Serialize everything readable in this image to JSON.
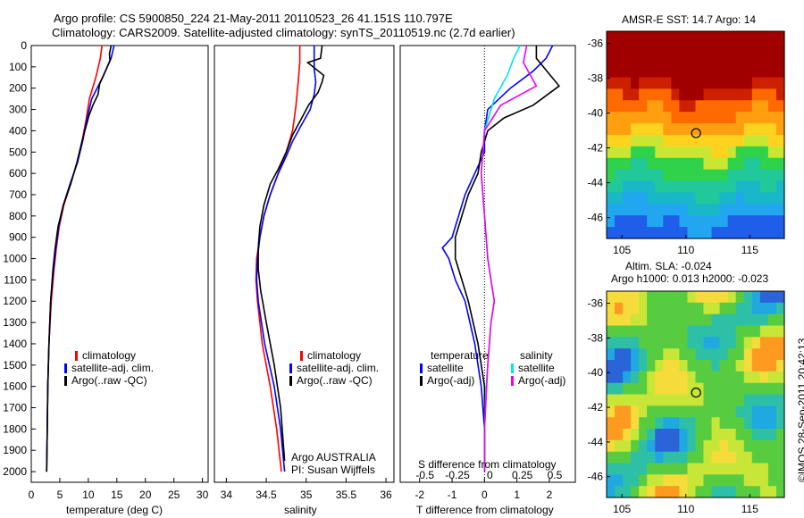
{
  "header": {
    "line1": "Argo profile: CS 5900850_224 21-May-2011 20110523_26 41.151S 110.797E",
    "line2": "Climatology: CARS2009. Satellite-adjusted climatology: synTS_20110519.nc (2.7d earlier)"
  },
  "credit": "©IMOS 28-Sep-2011 20:42:13",
  "colors": {
    "climatology": "#ff0000",
    "satellite": "#0000ff",
    "argo": "#000000",
    "sal_satellite": "#00e5ee",
    "sal_argo": "#ee00ee"
  },
  "chart_data": [
    {
      "id": "temperature",
      "type": "line",
      "xlabel": "temperature (deg C)",
      "xlim": [
        0,
        31
      ],
      "xticks": [
        0,
        5,
        10,
        15,
        20,
        25,
        30
      ],
      "ylim": [
        2050,
        0
      ],
      "yticks": [
        0,
        100,
        200,
        300,
        400,
        500,
        600,
        700,
        800,
        900,
        1000,
        1100,
        1200,
        1300,
        1400,
        1500,
        1600,
        1700,
        1800,
        1900,
        2000
      ],
      "legend": [
        "climatology",
        "satellite-adj. clim.",
        "Argo(..raw -QC)"
      ],
      "series": [
        {
          "name": "climatology",
          "color": "#ff0000",
          "x": [
            12.4,
            12.1,
            11.3,
            10.2,
            9.6,
            8.9,
            8.0,
            6.9,
            5.7,
            4.9,
            4.4,
            4.0,
            3.5,
            3.1,
            2.9,
            2.8,
            2.7
          ],
          "y": [
            0,
            60,
            150,
            250,
            350,
            450,
            550,
            650,
            750,
            850,
            950,
            1050,
            1200,
            1400,
            1600,
            1800,
            2000
          ]
        },
        {
          "name": "satellite-adj. clim.",
          "color": "#0000ff",
          "x": [
            14.5,
            14.0,
            12.5,
            10.6,
            9.7,
            9.0,
            8.1,
            6.8,
            5.6,
            4.8,
            4.3,
            3.9,
            3.4,
            3.1,
            2.9,
            2.8,
            2.7
          ],
          "y": [
            0,
            60,
            150,
            250,
            350,
            450,
            550,
            650,
            750,
            850,
            950,
            1050,
            1200,
            1400,
            1600,
            1800,
            2000
          ]
        },
        {
          "name": "Argo(..raw -QC)",
          "color": "#000000",
          "x": [
            14.0,
            13.7,
            13.8,
            13.0,
            12.0,
            11.7,
            10.8,
            10.1,
            9.6,
            8.9,
            8.0,
            6.9,
            5.6,
            4.7,
            4.2,
            3.8,
            3.4,
            3.1,
            2.9,
            2.8,
            2.7
          ],
          "y": [
            0,
            40,
            70,
            120,
            180,
            230,
            280,
            330,
            380,
            450,
            550,
            650,
            750,
            850,
            950,
            1050,
            1200,
            1400,
            1600,
            1800,
            2000
          ]
        }
      ]
    },
    {
      "id": "salinity",
      "type": "line",
      "xlabel": "salinity",
      "xlim": [
        33.85,
        36.1
      ],
      "xticks": [
        34,
        34.5,
        35,
        35.5,
        36
      ],
      "ylim": [
        2050,
        0
      ],
      "yticks": [],
      "legend": [
        "climatology",
        "satellite-adj. clim.",
        "Argo(..raw -QC)"
      ],
      "annotation": [
        "Argo AUSTRALIA",
        "PI: Susan Wijffels"
      ],
      "series": [
        {
          "name": "climatology",
          "color": "#ff0000",
          "x": [
            34.92,
            34.92,
            34.9,
            34.87,
            34.83,
            34.75,
            34.65,
            34.55,
            34.47,
            34.42,
            34.38,
            34.37,
            34.39,
            34.45,
            34.55,
            34.63,
            34.69
          ],
          "y": [
            0,
            80,
            170,
            290,
            400,
            500,
            600,
            700,
            800,
            900,
            1000,
            1100,
            1200,
            1400,
            1600,
            1800,
            2000
          ]
        },
        {
          "name": "satellite-adj. clim.",
          "color": "#0000ff",
          "x": [
            35.1,
            35.1,
            35.1,
            35.12,
            35.1,
            35.05,
            34.93,
            34.83,
            34.75,
            34.65,
            34.55,
            34.47,
            34.42,
            34.39,
            34.38,
            34.4,
            34.48,
            34.6,
            34.68,
            34.73
          ],
          "y": [
            0,
            60,
            110,
            170,
            230,
            300,
            380,
            450,
            520,
            600,
            700,
            800,
            900,
            1000,
            1100,
            1200,
            1400,
            1600,
            1800,
            2000
          ]
        },
        {
          "name": "Argo(..raw -QC)",
          "color": "#000000",
          "x": [
            35.2,
            35.18,
            35.02,
            35.22,
            35.2,
            35.15,
            35.03,
            34.93,
            34.83,
            34.75,
            34.65,
            34.55,
            34.47,
            34.42,
            34.4,
            34.4,
            34.43,
            34.5,
            34.6,
            34.68,
            34.73
          ],
          "y": [
            0,
            60,
            80,
            140,
            170,
            220,
            280,
            350,
            420,
            500,
            580,
            650,
            750,
            850,
            950,
            1050,
            1150,
            1300,
            1500,
            1700,
            1950
          ]
        }
      ]
    },
    {
      "id": "difference",
      "type": "line",
      "xlabel": "T difference from climatology",
      "toplabel": "S difference from climatology",
      "xlim": [
        -2.6,
        2.8
      ],
      "xticks": [
        -2,
        -1,
        0,
        1,
        2
      ],
      "sticks": [
        -0.5,
        -0.25,
        0,
        0.25,
        0.5
      ],
      "ylim": [
        2050,
        0
      ],
      "yticks": [],
      "legend_temp_title": "temperature",
      "legend_sal_title": "salinity",
      "legend_temp": [
        "satellite",
        "Argo(-adj)"
      ],
      "legend_sal": [
        "satellite",
        "Argo(-adj)"
      ],
      "series": [
        {
          "name": "satellite",
          "color": "#0000ff",
          "x": [
            2.1,
            1.9,
            1.5,
            0.8,
            0.1,
            0,
            0,
            -0.3,
            -0.6,
            -0.8,
            -1.0,
            -1.3,
            -1.1,
            -0.9,
            -0.6,
            -0.3,
            -0.1,
            0,
            0
          ],
          "y": [
            0,
            60,
            120,
            200,
            300,
            400,
            500,
            600,
            700,
            800,
            900,
            950,
            1000,
            1100,
            1200,
            1400,
            1600,
            1800,
            2000
          ]
        },
        {
          "name": "Argo(-adj)",
          "color": "#000000",
          "x": [
            1.6,
            1.6,
            2.3,
            1.5,
            0.6,
            0.1,
            -0.1,
            -0.2,
            -0.5,
            -0.7,
            -0.9,
            -0.9,
            -0.7,
            -0.5,
            -0.2,
            0,
            0
          ],
          "y": [
            0,
            60,
            190,
            280,
            340,
            400,
            500,
            600,
            700,
            800,
            900,
            1000,
            1100,
            1200,
            1400,
            1600,
            2000
          ]
        },
        {
          "name": "salinity satellite",
          "color": "#00e5ee",
          "x": [
            1.1,
            0.9,
            0.7,
            0.3,
            0.0,
            -0.1,
            0,
            0.1,
            0.2,
            0.3,
            0.2,
            0.15,
            0.05,
            0,
            0
          ],
          "y": [
            0,
            60,
            140,
            250,
            400,
            600,
            800,
            1000,
            1100,
            1200,
            1300,
            1400,
            1600,
            1800,
            2000
          ]
        },
        {
          "name": "salinity Argo(-adj)",
          "color": "#ee00ee",
          "x": [
            1.3,
            1.2,
            1.6,
            0.5,
            0.0,
            -0.1,
            0,
            0.1,
            0.2,
            0.3,
            0.2,
            0.1,
            0,
            0
          ],
          "y": [
            0,
            80,
            190,
            280,
            400,
            600,
            800,
            1000,
            1100,
            1200,
            1300,
            1500,
            1800,
            2000
          ]
        }
      ]
    },
    {
      "id": "sst_map",
      "type": "heatmap",
      "title": "AMSR-E SST: 14.7 Argo: 14",
      "xticks": [
        105,
        110,
        115
      ],
      "yticks": [
        -36,
        -38,
        -40,
        -42,
        -44,
        -46
      ],
      "xlim": [
        103.8,
        117.7
      ],
      "ylim": [
        -47.2,
        -35.3
      ],
      "marker": {
        "lon": 110.797,
        "lat": -41.151
      }
    },
    {
      "id": "sla_map",
      "type": "heatmap",
      "title1": "Altim. SLA: -0.024",
      "title2": "Argo h1000: 0.013 h2000: -0.023",
      "xticks": [
        105,
        110,
        115
      ],
      "yticks": [
        -36,
        -38,
        -40,
        -42,
        -44,
        -46
      ],
      "xlim": [
        103.8,
        117.7
      ],
      "ylim": [
        -47.2,
        -35.3
      ],
      "marker": {
        "lon": 110.797,
        "lat": -41.151
      }
    }
  ]
}
